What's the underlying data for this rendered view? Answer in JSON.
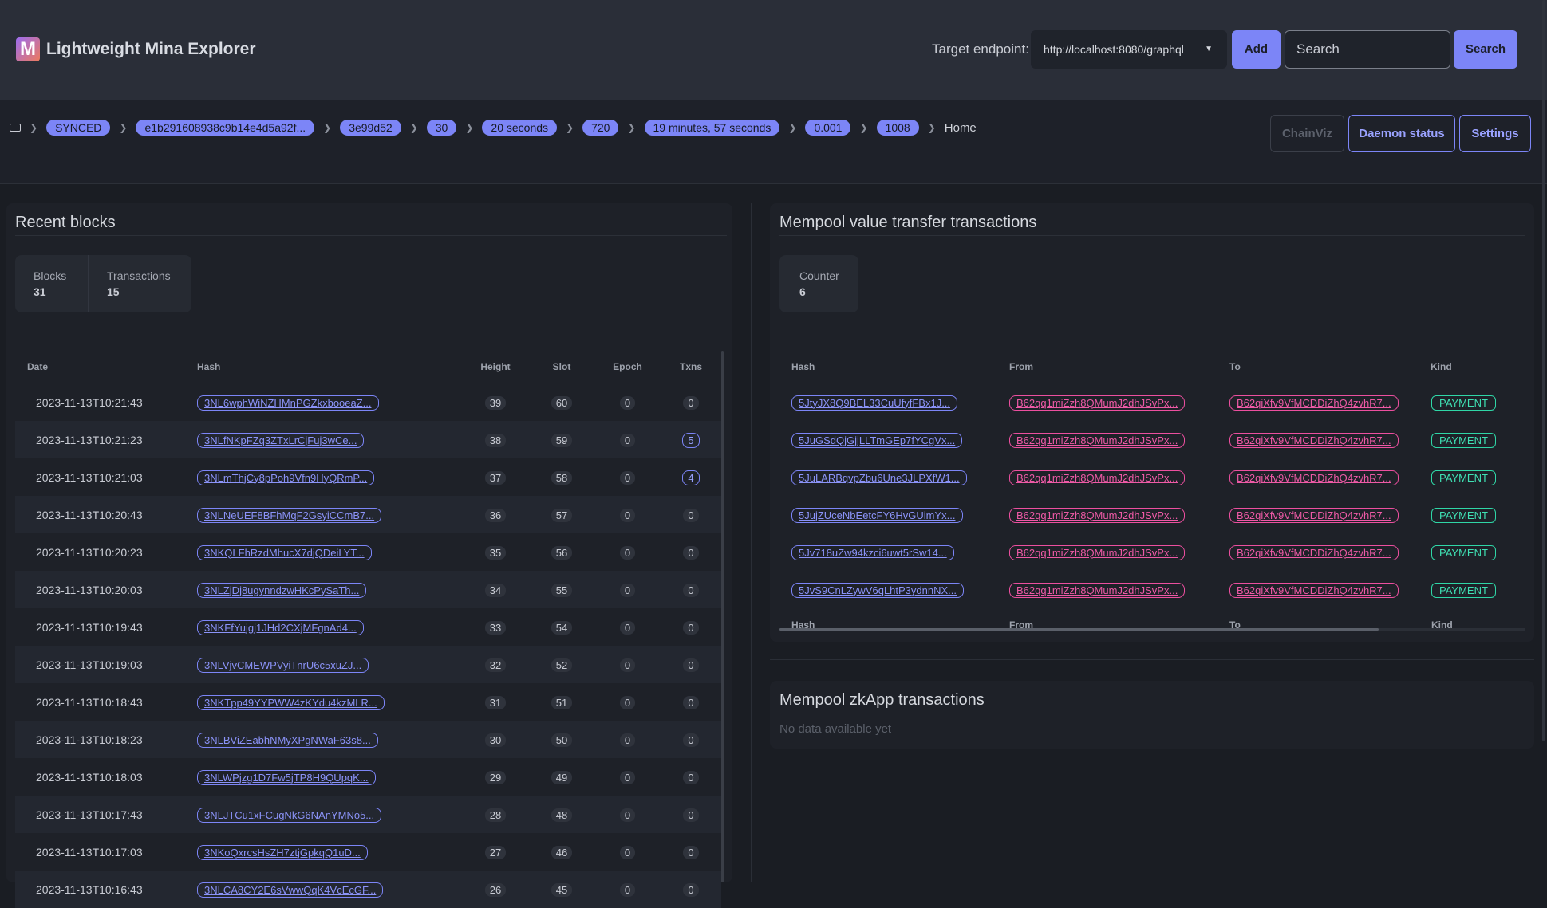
{
  "header": {
    "logo_letter": "M",
    "title": "Lightweight Mina Explorer",
    "endpoint_label": "Target endpoint:",
    "endpoint_value": "http://localhost:8080/graphql",
    "add_label": "Add",
    "search_placeholder": "Search",
    "search_label": "Search"
  },
  "breadcrumb": {
    "pills": [
      "SYNCED",
      "e1b291608938c9b14e4d5a92f...",
      "3e99d52",
      "30",
      "20 seconds",
      "720",
      "19 minutes, 57 seconds",
      "0.001",
      "1008"
    ],
    "home": "Home"
  },
  "actions": {
    "chainviz": "ChainViz",
    "daemon": "Daemon status",
    "settings": "Settings"
  },
  "recent_blocks": {
    "title": "Recent blocks",
    "stats": [
      {
        "label": "Blocks",
        "value": "31"
      },
      {
        "label": "Transactions",
        "value": "15"
      }
    ],
    "columns": [
      "Date",
      "Hash",
      "Height",
      "Slot",
      "Epoch",
      "Txns"
    ],
    "rows": [
      [
        "2023-11-13T10:21:43",
        "3NL6wphWiNZHMnPGZkxbooeaZ...",
        "39",
        "60",
        "0",
        "0"
      ],
      [
        "2023-11-13T10:21:23",
        "3NLfNKpFZq3ZTxLrCjFuj3wCe...",
        "38",
        "59",
        "0",
        "5"
      ],
      [
        "2023-11-13T10:21:03",
        "3NLmThjCy8pPoh9Vfn9HyQRmP...",
        "37",
        "58",
        "0",
        "4"
      ],
      [
        "2023-11-13T10:20:43",
        "3NLNeUEF8BFhMqF2GsyiCCmB7...",
        "36",
        "57",
        "0",
        "0"
      ],
      [
        "2023-11-13T10:20:23",
        "3NKQLFhRzdMhucX7djQDeiLYT...",
        "35",
        "56",
        "0",
        "0"
      ],
      [
        "2023-11-13T10:20:03",
        "3NLZjDj8ugynndzwHKcPySaTh...",
        "34",
        "55",
        "0",
        "0"
      ],
      [
        "2023-11-13T10:19:43",
        "3NKFfYujgj1JHd2CXjMFgnAd4...",
        "33",
        "54",
        "0",
        "0"
      ],
      [
        "2023-11-13T10:19:03",
        "3NLVjvCMEWPVyiTnrU6c5xuZJ...",
        "32",
        "52",
        "0",
        "0"
      ],
      [
        "2023-11-13T10:18:43",
        "3NKTpp49YYPWW4zKYdu4kzMLR...",
        "31",
        "51",
        "0",
        "0"
      ],
      [
        "2023-11-13T10:18:23",
        "3NLBViZEabhNMyXPgNWaF63s8...",
        "30",
        "50",
        "0",
        "0"
      ],
      [
        "2023-11-13T10:18:03",
        "3NLWPjzg1D7Fw5jTP8H9QUpqK...",
        "29",
        "49",
        "0",
        "0"
      ],
      [
        "2023-11-13T10:17:43",
        "3NLJTCu1xFCugNkG6NAnYMNo5...",
        "28",
        "48",
        "0",
        "0"
      ],
      [
        "2023-11-13T10:17:03",
        "3NKoQxrcsHsZH7ztjGpkqQ1uD...",
        "27",
        "46",
        "0",
        "0"
      ],
      [
        "2023-11-13T10:16:43",
        "3NLCA8CY2E6sVwwQqK4VcEcGF...",
        "26",
        "45",
        "0",
        "0"
      ]
    ]
  },
  "mempool": {
    "title": "Mempool value transfer transactions",
    "counter_label": "Counter",
    "counter_value": "6",
    "columns": [
      "Hash",
      "From",
      "To",
      "Kind"
    ],
    "rows": [
      [
        "5JtyJX8Q9BEL33CuUfyfFBx1J...",
        "B62qq1miZzh8QMumJ2dhJSvPx...",
        "B62qiXfv9VfMCDDiZhQ4zvhR7...",
        "PAYMENT"
      ],
      [
        "5JuGSdQjGjjLLTmGEp7fYCgVx...",
        "B62qq1miZzh8QMumJ2dhJSvPx...",
        "B62qiXfv9VfMCDDiZhQ4zvhR7...",
        "PAYMENT"
      ],
      [
        "5JuLARBqvpZbu6Une3JLPXfW1...",
        "B62qq1miZzh8QMumJ2dhJSvPx...",
        "B62qiXfv9VfMCDDiZhQ4zvhR7...",
        "PAYMENT"
      ],
      [
        "5JujZUceNbEetcFY6HvGUimYx...",
        "B62qq1miZzh8QMumJ2dhJSvPx...",
        "B62qiXfv9VfMCDDiZhQ4zvhR7...",
        "PAYMENT"
      ],
      [
        "5Jv718uZw94kzci6uwt5rSw14...",
        "B62qq1miZzh8QMumJ2dhJSvPx...",
        "B62qiXfv9VfMCDDiZhQ4zvhR7...",
        "PAYMENT"
      ],
      [
        "5JvS9CnLZywV6qLhtP3ydnnNX...",
        "B62qq1miZzh8QMumJ2dhJSvPx...",
        "B62qiXfv9VfMCDDiZhQ4zvhR7...",
        "PAYMENT"
      ]
    ]
  },
  "zkapp": {
    "title": "Mempool zkApp transactions",
    "empty": "No data available yet"
  },
  "colors": {
    "accent": "#7c85f7",
    "address": "#ec4f9f",
    "payment": "#2fd6a6"
  }
}
